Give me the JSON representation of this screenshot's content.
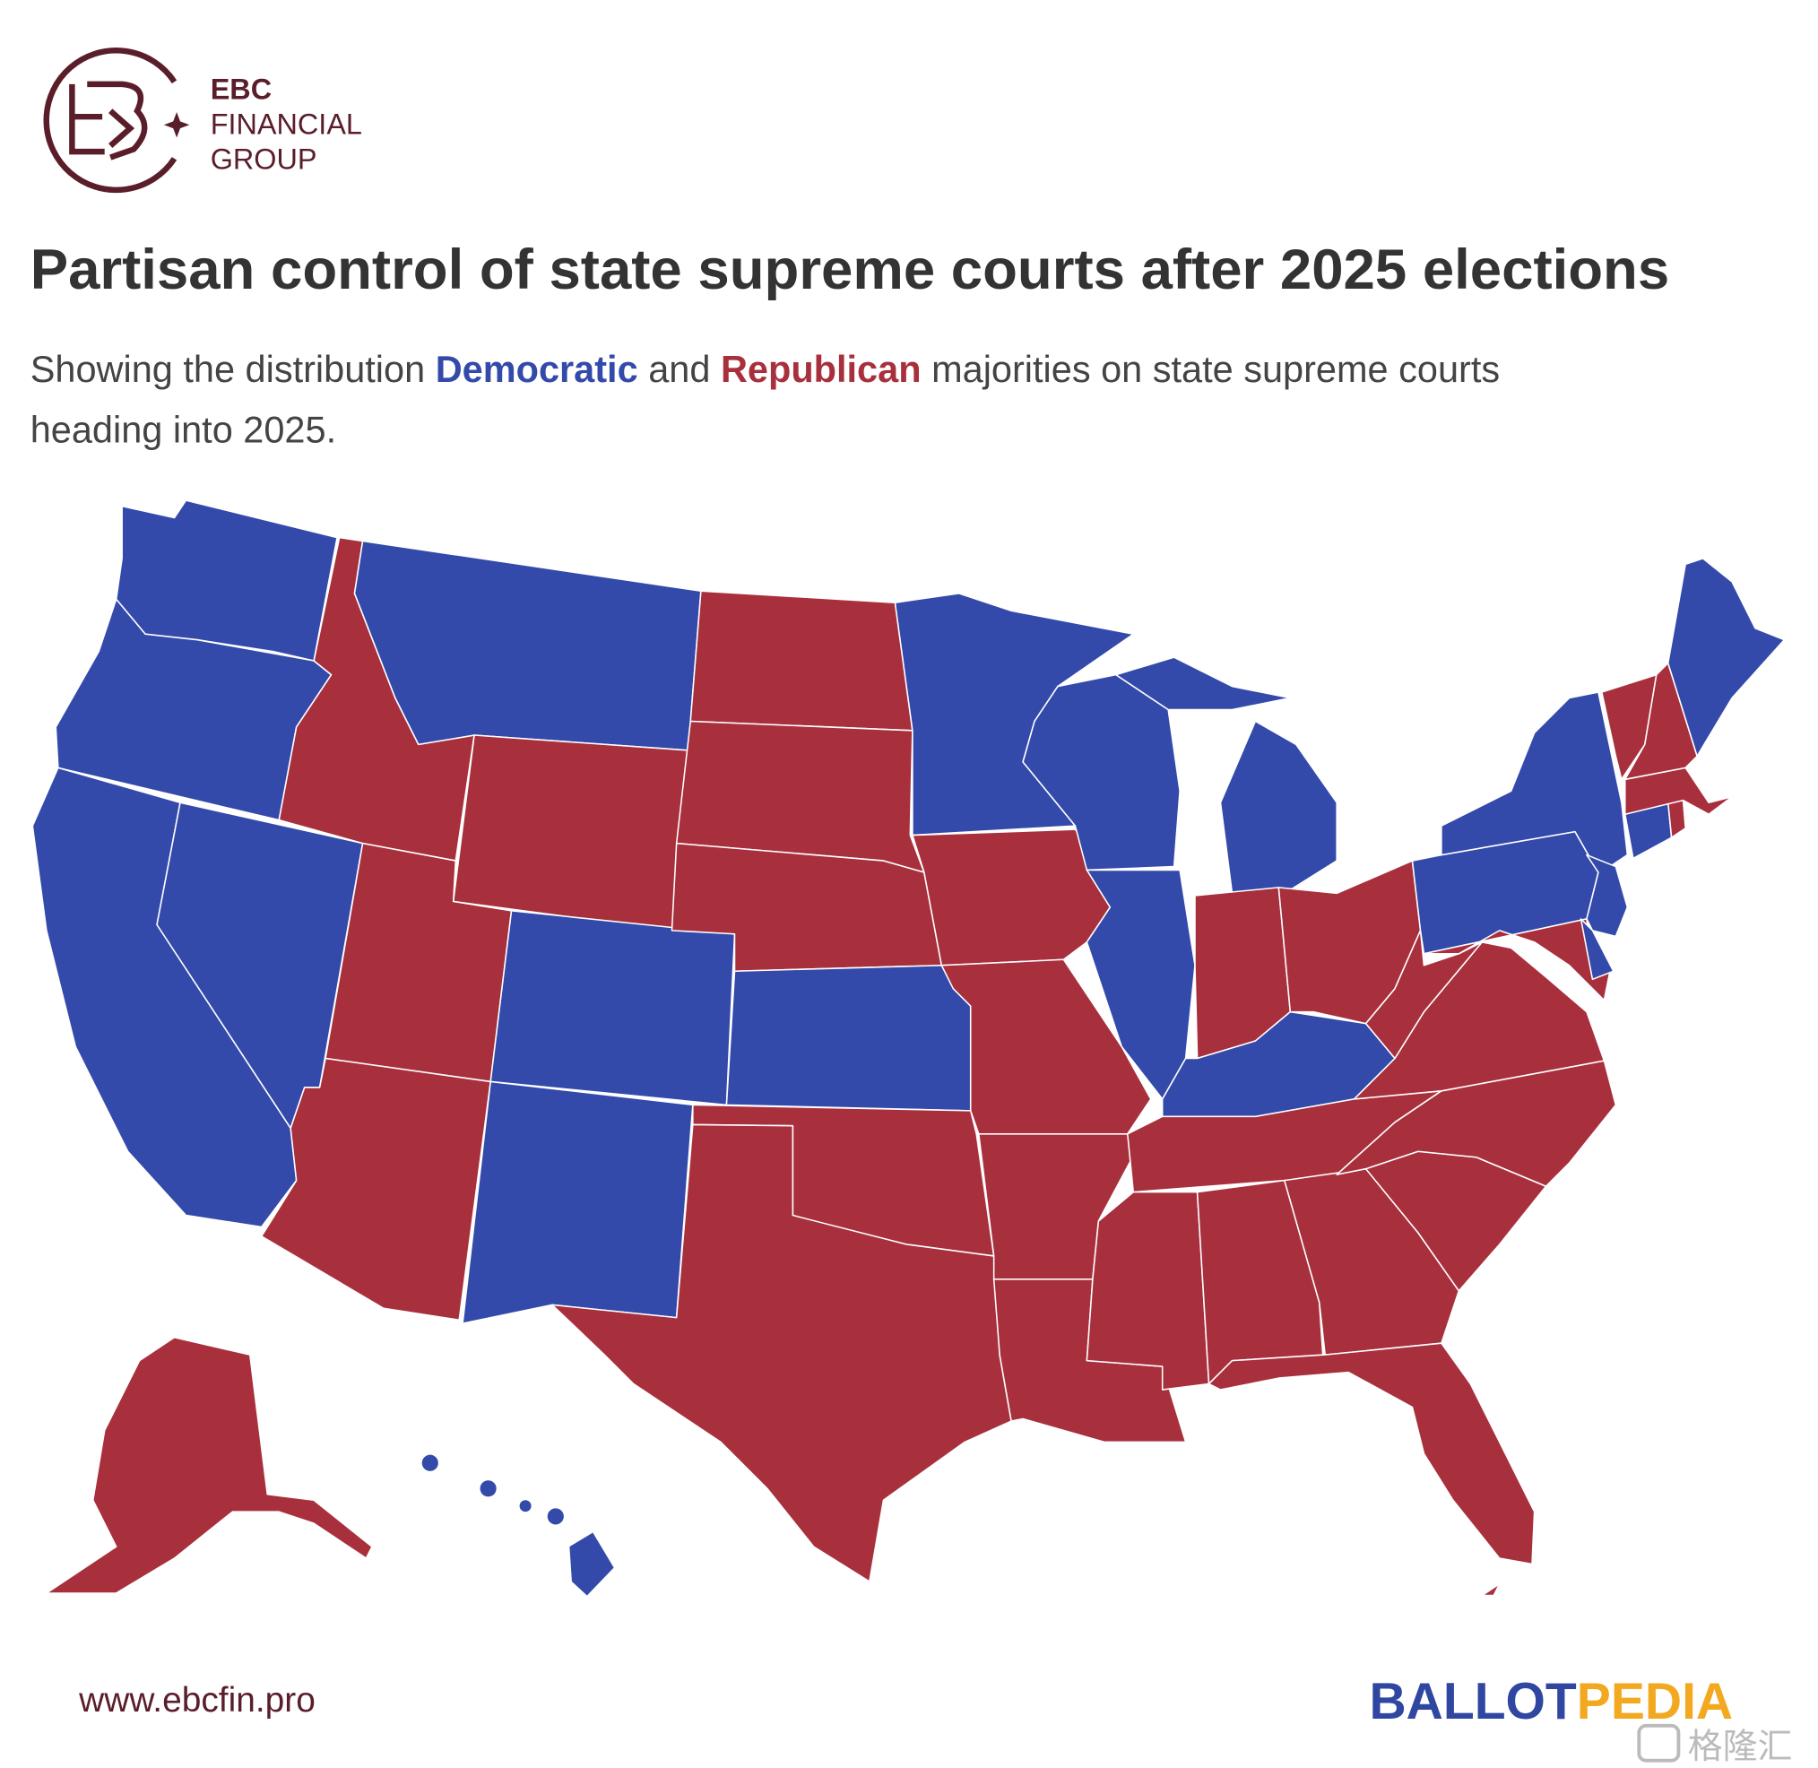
{
  "logo": {
    "line1": "EBC",
    "line2": "FINANCIAL",
    "line3": "GROUP"
  },
  "title": "Partisan control of state supreme courts after 2025 elections",
  "subtitle": {
    "before": "Showing the distribution ",
    "democratic": "Democratic",
    "middle": " and ",
    "republican": "Republican",
    "after": " majorities on state supreme courts",
    "line2": "heading into 2025."
  },
  "map": {
    "democratic_color": "#334aaa",
    "republican_color": "#a8303d"
  },
  "footer": {
    "website": "www.ebcfin.pro",
    "brand_part1": "BALLOT",
    "brand_part2": "PEDIA",
    "watermark": "格隆汇"
  }
}
